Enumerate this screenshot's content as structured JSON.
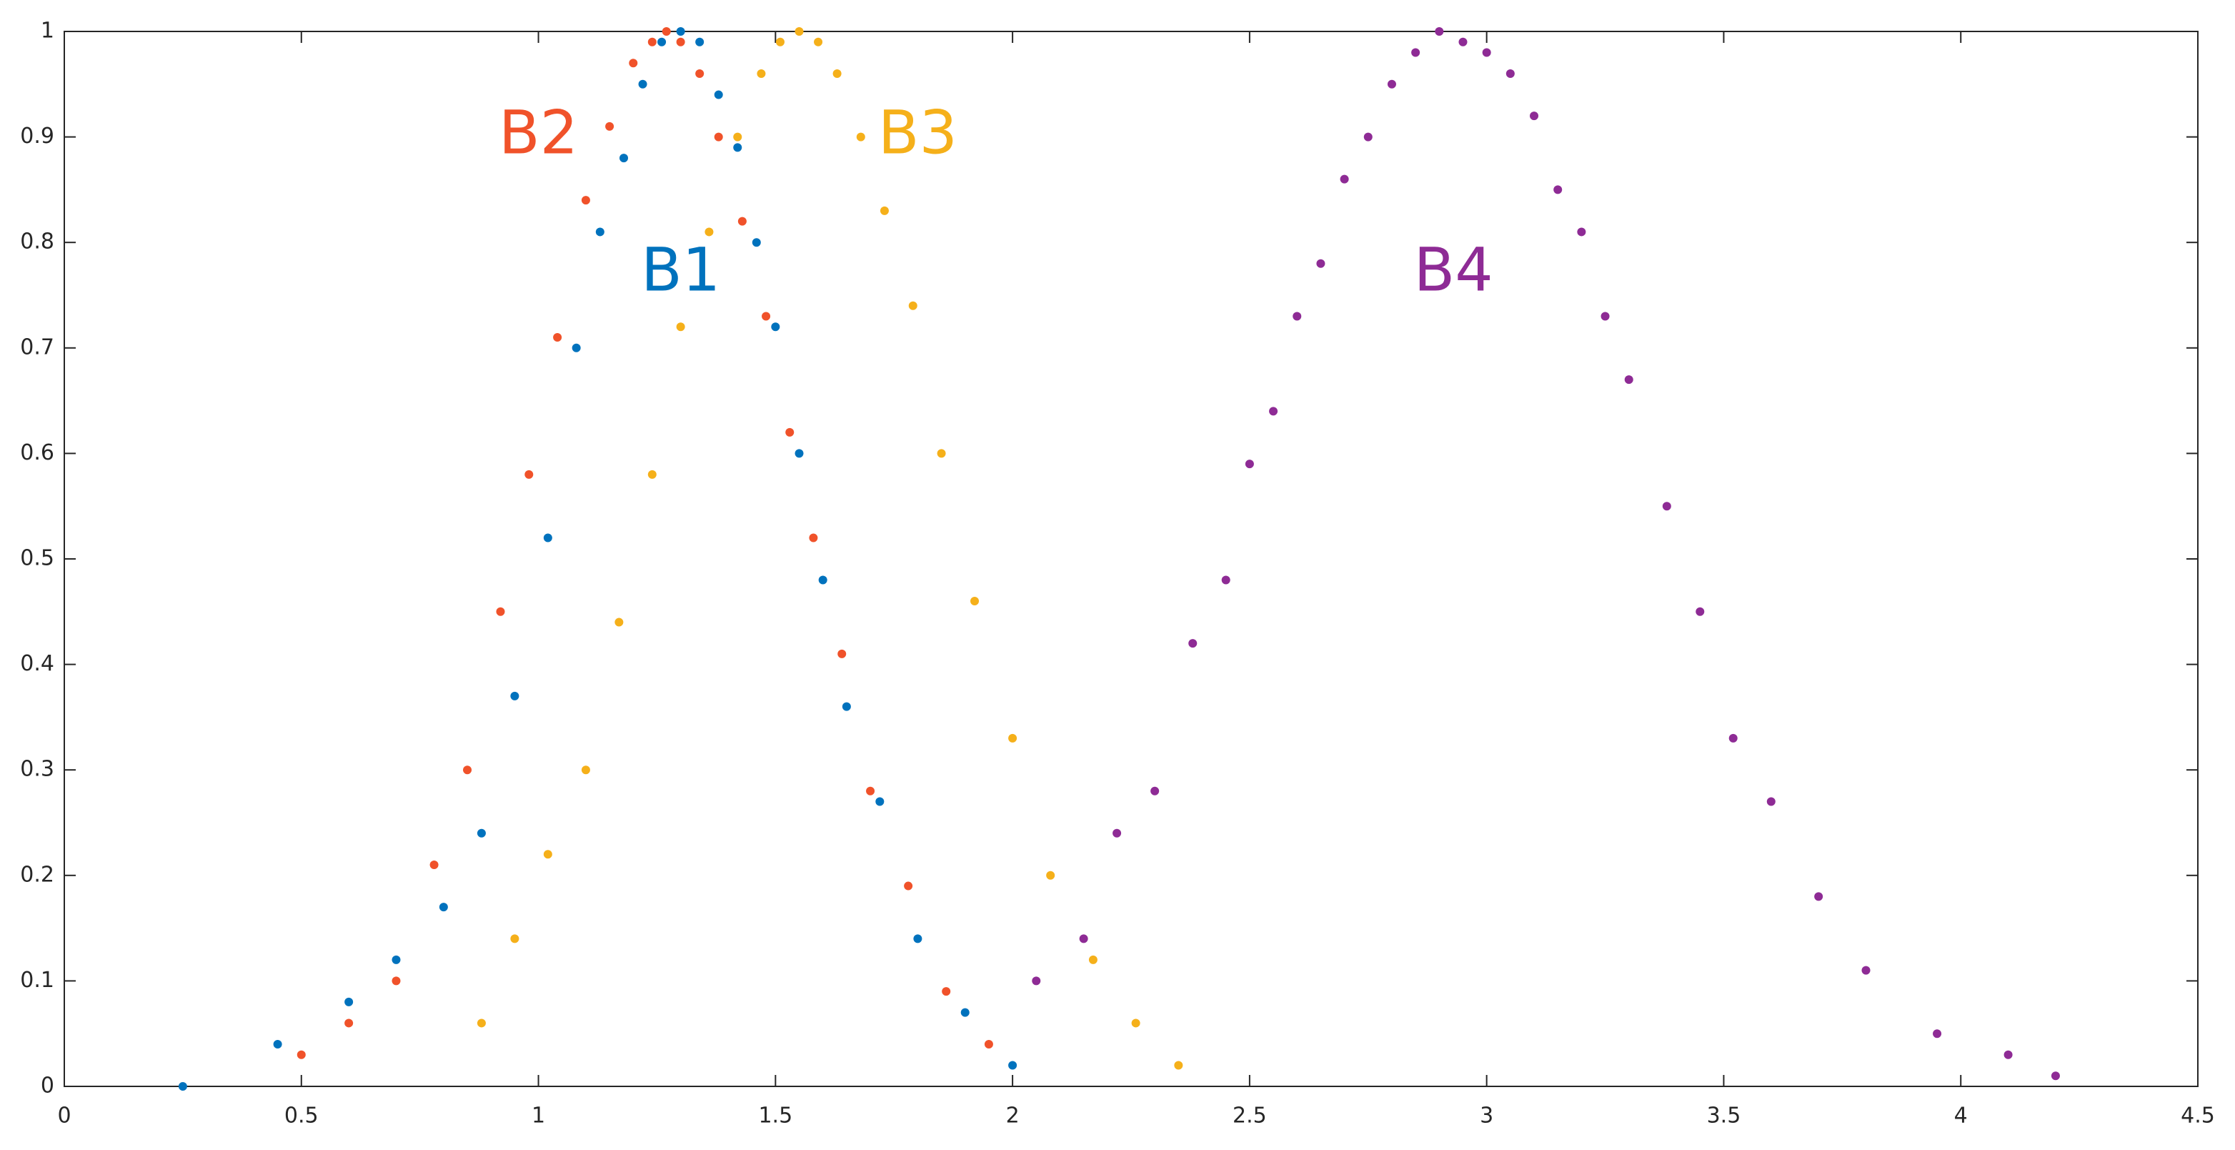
{
  "chart_data": {
    "type": "scatter",
    "xlim": [
      0,
      4.5
    ],
    "xticks": [
      0,
      0.5,
      1,
      1.5,
      2,
      2.5,
      3,
      3.5,
      4,
      4.5
    ],
    "ylim": [
      0,
      1
    ],
    "yticks": [
      0,
      0.1,
      0.2,
      0.3,
      0.4,
      0.5,
      0.6,
      0.7,
      0.8,
      0.9,
      1
    ],
    "series": [
      {
        "name": "B1",
        "color": "#0072bd",
        "x": [
          0.25,
          0.45,
          0.6,
          0.7,
          0.8,
          0.88,
          0.95,
          1.02,
          1.08,
          1.13,
          1.18,
          1.22,
          1.26,
          1.3,
          1.34,
          1.38,
          1.42,
          1.46,
          1.5,
          1.55,
          1.6,
          1.65,
          1.72,
          1.8,
          1.9,
          2.0
        ],
        "values": [
          0.0,
          0.04,
          0.08,
          0.12,
          0.17,
          0.24,
          0.37,
          0.52,
          0.7,
          0.81,
          0.88,
          0.95,
          0.99,
          1.0,
          0.99,
          0.94,
          0.89,
          0.8,
          0.72,
          0.6,
          0.48,
          0.36,
          0.27,
          0.14,
          0.07,
          0.02
        ]
      },
      {
        "name": "B2",
        "color": "#f0522a",
        "x": [
          0.5,
          0.6,
          0.7,
          0.78,
          0.85,
          0.92,
          0.98,
          1.04,
          1.1,
          1.15,
          1.2,
          1.24,
          1.27,
          1.3,
          1.34,
          1.38,
          1.43,
          1.48,
          1.53,
          1.58,
          1.64,
          1.7,
          1.78,
          1.86,
          1.95
        ],
        "values": [
          0.03,
          0.06,
          0.1,
          0.21,
          0.3,
          0.45,
          0.58,
          0.71,
          0.84,
          0.91,
          0.97,
          0.99,
          1.0,
          0.99,
          0.96,
          0.9,
          0.82,
          0.73,
          0.62,
          0.52,
          0.41,
          0.28,
          0.19,
          0.09,
          0.04
        ]
      },
      {
        "name": "B3",
        "color": "#f5b01a",
        "x": [
          0.88,
          0.95,
          1.02,
          1.1,
          1.17,
          1.24,
          1.3,
          1.36,
          1.42,
          1.47,
          1.51,
          1.55,
          1.59,
          1.63,
          1.68,
          1.73,
          1.79,
          1.85,
          1.92,
          2.0,
          2.08,
          2.17,
          2.26,
          2.35
        ],
        "values": [
          0.06,
          0.14,
          0.22,
          0.3,
          0.44,
          0.58,
          0.72,
          0.81,
          0.9,
          0.96,
          0.99,
          1.0,
          0.99,
          0.96,
          0.9,
          0.83,
          0.74,
          0.6,
          0.46,
          0.33,
          0.2,
          0.12,
          0.06,
          0.02
        ]
      },
      {
        "name": "B4",
        "color": "#8e2b95",
        "x": [
          2.05,
          2.15,
          2.22,
          2.3,
          2.38,
          2.45,
          2.5,
          2.55,
          2.6,
          2.65,
          2.7,
          2.75,
          2.8,
          2.85,
          2.9,
          2.95,
          3.0,
          3.05,
          3.1,
          3.15,
          3.2,
          3.25,
          3.3,
          3.38,
          3.45,
          3.52,
          3.6,
          3.7,
          3.8,
          3.95,
          4.1,
          4.2
        ],
        "values": [
          0.1,
          0.14,
          0.24,
          0.28,
          0.42,
          0.48,
          0.59,
          0.64,
          0.73,
          0.78,
          0.86,
          0.9,
          0.95,
          0.98,
          1.0,
          0.99,
          0.98,
          0.96,
          0.92,
          0.85,
          0.81,
          0.73,
          0.67,
          0.55,
          0.45,
          0.33,
          0.27,
          0.18,
          0.11,
          0.05,
          0.03,
          0.01
        ]
      }
    ]
  }
}
